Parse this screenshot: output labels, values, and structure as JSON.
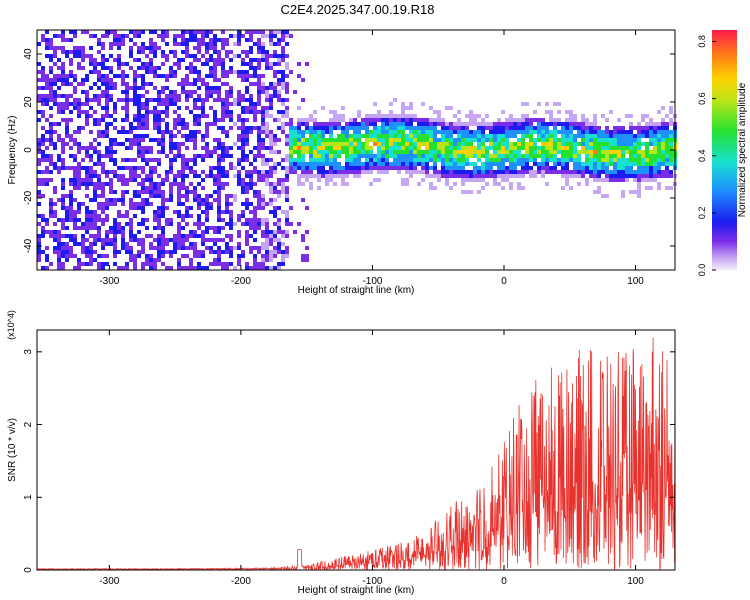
{
  "title": "C2E4.2025.347.00.19.R18",
  "chart_data": [
    {
      "type": "heatmap",
      "name": "spectrogram",
      "xlabel": "Height of straight line (km)",
      "ylabel": "Frequency (Hz)",
      "xlim": [
        -355,
        130
      ],
      "ylim": [
        -50,
        50
      ],
      "xticks": [
        -300,
        -200,
        -100,
        0,
        100
      ],
      "yticks": [
        -40,
        -20,
        0,
        20,
        40
      ],
      "colorbar": {
        "label": "Normalized spectral amplitude",
        "range": [
          0.0,
          0.84
        ],
        "ticks": [
          "0.0",
          "0.2",
          "0.4",
          "0.6",
          "0.8"
        ]
      },
      "description_regions": [
        {
          "x_range": [
            -355,
            -165
          ],
          "content": "broadband noise, amplitude ~0.0-0.1, all frequencies"
        },
        {
          "x_range": [
            -165,
            130
          ],
          "content": "signal band centered near 0 Hz, width about +/-10 Hz, amplitude up to ~0.8"
        }
      ]
    },
    {
      "type": "line",
      "name": "snr",
      "xlabel": "Height of straight line (km)",
      "ylabel": "SNR (10 * v/v)",
      "y_multiplier": "(x10^4)",
      "xlim": [
        -355,
        130
      ],
      "ylim": [
        0,
        3.3
      ],
      "xticks": [
        -300,
        -200,
        -100,
        0,
        100
      ],
      "yticks": [
        0,
        1,
        2,
        3
      ],
      "color": "#e8322d",
      "envelope": {
        "x": [
          -355,
          -250,
          -170,
          -150,
          -130,
          -110,
          -90,
          -70,
          -50,
          -30,
          -10,
          0,
          10,
          30,
          50,
          70,
          90,
          110,
          130
        ],
        "y": [
          0.02,
          0.02,
          0.03,
          0.06,
          0.12,
          0.18,
          0.26,
          0.35,
          0.55,
          0.8,
          1.1,
          1.35,
          1.8,
          2.1,
          2.3,
          2.4,
          2.3,
          2.5,
          2.4
        ]
      }
    }
  ]
}
